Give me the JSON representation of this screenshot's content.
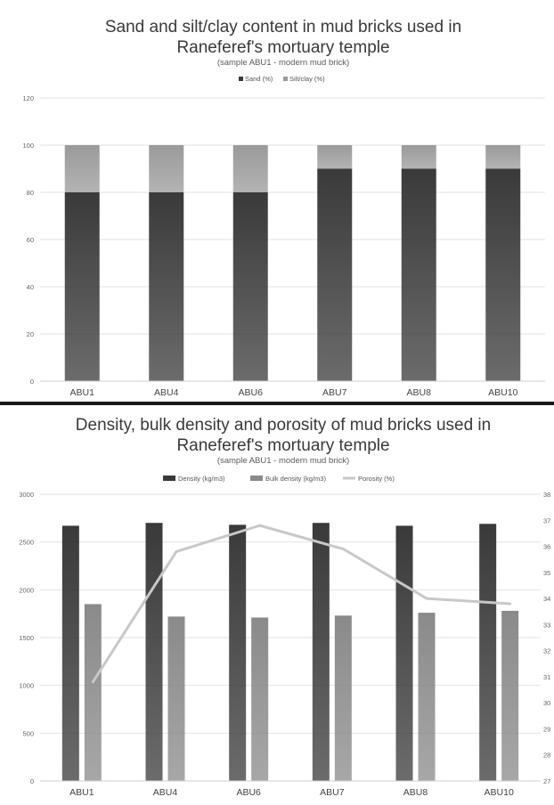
{
  "chart_data": [
    {
      "type": "bar",
      "stacked": true,
      "title_line1": "Sand and silt/clay content in mud bricks used in",
      "title_line2": "Raneferef's mortuary temple",
      "subtitle": "(sample ABU1 - modern mud brick)",
      "categories": [
        "ABU1",
        "ABU4",
        "ABU6",
        "ABU7",
        "ABU8",
        "ABU10"
      ],
      "series": [
        {
          "name": "Sand (%)",
          "values": [
            80,
            80,
            80,
            90,
            90,
            90
          ],
          "color": "#3a3a3a"
        },
        {
          "name": "Silt/clay (%)",
          "values": [
            20,
            20,
            20,
            10,
            10,
            10
          ],
          "color": "#9a9a9a"
        }
      ],
      "ylim": [
        0,
        120
      ],
      "yticks": [
        0,
        20,
        40,
        60,
        80,
        100,
        120
      ],
      "legend": "top",
      "grid": true
    },
    {
      "type": "bar",
      "title_line1": "Density, bulk density and porosity of mud bricks used in",
      "title_line2": "Raneferef's mortuary temple",
      "subtitle": "(sample ABU1 - modern mud brick)",
      "categories": [
        "ABU1",
        "ABU4",
        "ABU6",
        "ABU7",
        "ABU8",
        "ABU10"
      ],
      "series": [
        {
          "name": "Density (kg/m3)",
          "type": "bar",
          "axis": "left",
          "values": [
            2670,
            2700,
            2680,
            2700,
            2670,
            2690
          ],
          "color": "#3a3a3a"
        },
        {
          "name": "Bulk density (kg/m3)",
          "type": "bar",
          "axis": "left",
          "values": [
            1850,
            1720,
            1710,
            1730,
            1760,
            1780
          ],
          "color": "#8a8a8a"
        },
        {
          "name": "Porosity (%)",
          "type": "line",
          "axis": "right",
          "values": [
            30.8,
            35.8,
            36.8,
            35.9,
            34.0,
            33.8
          ],
          "color": "#c8c8c8"
        }
      ],
      "ylim_left": [
        0,
        3000
      ],
      "yticks_left": [
        0,
        500,
        1000,
        1500,
        2000,
        2500,
        3000
      ],
      "ylim_right": [
        27,
        38
      ],
      "yticks_right_visible": [
        "38",
        "37",
        "36",
        "35",
        "34",
        "33",
        "32",
        "31",
        "30",
        "29",
        "28",
        "27"
      ],
      "legend": "top",
      "grid": true
    }
  ]
}
